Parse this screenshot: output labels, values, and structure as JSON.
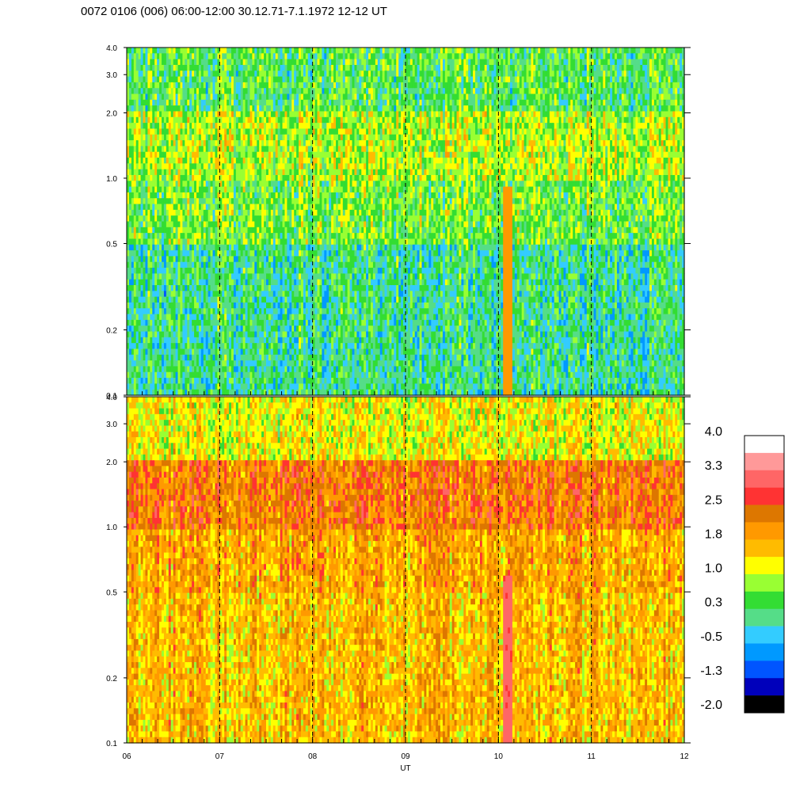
{
  "title": "0072 0106 (006) 06:00-12:00 30.12.71-7.1.1972  12-12 UT",
  "chart_data": [
    {
      "type": "heatmap",
      "panel": "upper",
      "x_ticks": [
        "06",
        "07",
        "08",
        "09",
        "10",
        "11",
        "12"
      ],
      "xlim": [
        6,
        12
      ],
      "y_scale": "log",
      "ylim": [
        0.1,
        4.0
      ],
      "y_ticks": [
        "0.1",
        "0.2",
        "0.5",
        "1.0",
        "2.0",
        "3.0",
        "4.0"
      ],
      "y_tick_values": [
        0.1,
        0.2,
        0.5,
        1.0,
        2.0,
        3.0,
        4.0
      ],
      "dashed_lines_at": [
        7,
        8,
        9,
        10,
        11
      ],
      "band_levels": [
        {
          "y": [
            0.1,
            0.5
          ],
          "level": 0.1
        },
        {
          "y": [
            0.5,
            1.0
          ],
          "level": 0.6
        },
        {
          "y": [
            1.0,
            2.0
          ],
          "level": 0.9
        },
        {
          "y": [
            2.0,
            4.0
          ],
          "level": 0.4
        }
      ],
      "hotspots": [
        {
          "x": 10.1,
          "y": [
            0.1,
            0.9
          ],
          "level": 1.9
        }
      ]
    },
    {
      "type": "heatmap",
      "panel": "lower",
      "xlabel": "UT",
      "x_ticks": [
        "06",
        "07",
        "08",
        "09",
        "10",
        "11",
        "12"
      ],
      "xlim": [
        6,
        12
      ],
      "y_scale": "log",
      "ylim": [
        0.1,
        4.0
      ],
      "y_ticks": [
        "0.1",
        "0.2",
        "0.5",
        "1.0",
        "2.0",
        "3.0",
        "4.0"
      ],
      "y_tick_values": [
        0.1,
        0.2,
        0.5,
        1.0,
        2.0,
        3.0,
        4.0
      ],
      "dashed_lines_at": [
        7,
        8,
        9,
        10,
        11
      ],
      "band_levels": [
        {
          "y": [
            0.1,
            0.5
          ],
          "level": 1.6
        },
        {
          "y": [
            0.5,
            1.0
          ],
          "level": 1.8
        },
        {
          "y": [
            1.0,
            2.0
          ],
          "level": 2.2
        },
        {
          "y": [
            2.0,
            4.0
          ],
          "level": 1.2
        }
      ],
      "hotspots": [
        {
          "x": 10.1,
          "y": [
            0.1,
            0.6
          ],
          "level": 3.0
        }
      ]
    }
  ],
  "colorbar": {
    "labels": [
      "4.0",
      "3.3",
      "2.5",
      "1.8",
      "1.0",
      "0.3",
      "-0.5",
      "-1.3",
      "-2.0"
    ],
    "colors": [
      "#ffffff",
      "#ff9999",
      "#ff6666",
      "#ff3333",
      "#dd7700",
      "#ff9900",
      "#ffbb00",
      "#ffff00",
      "#99ff33",
      "#33dd33",
      "#55dd88",
      "#33ccff",
      "#0099ff",
      "#0055ff",
      "#0000bb",
      "#000000"
    ]
  }
}
